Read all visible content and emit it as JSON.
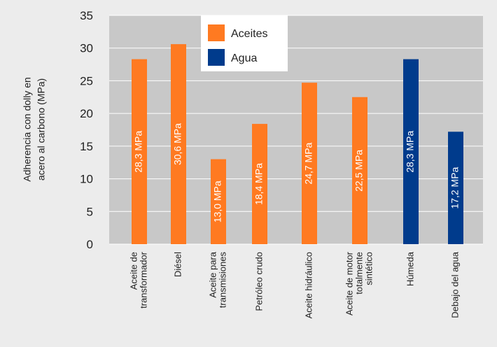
{
  "chart_data": {
    "type": "bar",
    "ylabel": [
      "Adherencia con dolly en",
      "acero al carbono (MPa)"
    ],
    "ylim": [
      0,
      35
    ],
    "yticks": [
      0,
      5,
      10,
      15,
      20,
      25,
      30,
      35
    ],
    "grid": true,
    "legend_position": "top-center",
    "legend": [
      {
        "name": "Aceites",
        "color": "#ff7a21"
      },
      {
        "name": "Agua",
        "color": "#003b8c"
      }
    ],
    "categories": [
      [
        "Aceite de",
        "transformador"
      ],
      [
        "Diésel"
      ],
      [
        "Aceite para",
        "transmisiones"
      ],
      [
        "Petróleo crudo"
      ],
      [
        "Aceite hidráulico"
      ],
      [
        "Aceite de motor",
        "totalmente",
        "sintético"
      ],
      [
        "Húmeda"
      ],
      [
        "Debajo del agua"
      ]
    ],
    "values": [
      28.3,
      30.6,
      13.0,
      18.4,
      24.7,
      22.5,
      28.3,
      17.2
    ],
    "series_index": [
      0,
      0,
      0,
      0,
      0,
      0,
      1,
      1
    ],
    "data_labels": [
      "28,3 MPa",
      "30,6 MPa",
      "13,0 MPa",
      "18,4 MPa",
      "24,7 MPa",
      "22,5 MPa",
      "28,3 MPa",
      "17,2 MPa"
    ]
  }
}
